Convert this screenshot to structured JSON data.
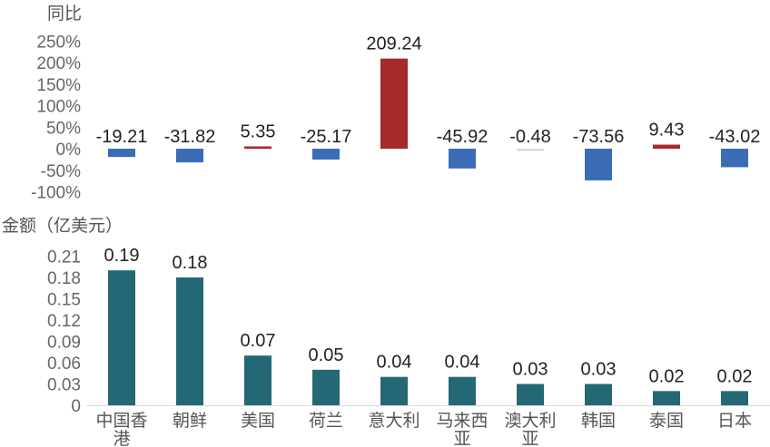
{
  "chart_data": [
    {
      "type": "bar",
      "title": "",
      "ylabel": "同比",
      "categories": [
        "中国香港",
        "朝鲜",
        "美国",
        "荷兰",
        "意大利",
        "马来西亚",
        "澳大利亚",
        "韩国",
        "泰国",
        "日本"
      ],
      "values": [
        -19.21,
        -31.82,
        5.35,
        -25.17,
        209.24,
        -45.92,
        -0.48,
        -73.56,
        9.43,
        -43.02
      ],
      "data_labels": [
        "-19.21",
        "-31.82",
        "5.35",
        "-25.17",
        "209.24",
        "-45.92",
        "-0.48",
        "-73.56",
        "9.43",
        "-43.02"
      ],
      "yticks": [
        "250%",
        "200%",
        "150%",
        "100%",
        "50%",
        "0%",
        "-50%",
        "-100%"
      ],
      "ylim": [
        -100,
        250
      ],
      "colors": {
        "positive": "#A52A2A",
        "negative": "#3A6DB5",
        "near_zero": "#D9D9D9"
      }
    },
    {
      "type": "bar",
      "title": "",
      "ylabel": "金额（亿美元）",
      "categories": [
        "中国香港",
        "朝鲜",
        "美国",
        "荷兰",
        "意大利",
        "马来西亚",
        "澳大利亚",
        "韩国",
        "泰国",
        "日本"
      ],
      "category_lines": [
        [
          "中国香",
          "港"
        ],
        [
          "朝鲜"
        ],
        [
          "美国"
        ],
        [
          "荷兰"
        ],
        [
          "意大利"
        ],
        [
          "马来西",
          "亚"
        ],
        [
          "澳大利",
          "亚"
        ],
        [
          "韩国"
        ],
        [
          "泰国"
        ],
        [
          "日本"
        ]
      ],
      "values": [
        0.19,
        0.18,
        0.07,
        0.05,
        0.04,
        0.04,
        0.03,
        0.03,
        0.02,
        0.02
      ],
      "data_labels": [
        "0.19",
        "0.18",
        "0.07",
        "0.05",
        "0.04",
        "0.04",
        "0.03",
        "0.03",
        "0.02",
        "0.02"
      ],
      "yticks": [
        "0.21",
        "0.18",
        "0.15",
        "0.12",
        "0.09",
        "0.06",
        "0.03",
        "0"
      ],
      "ylim": [
        0,
        0.21
      ],
      "colors": {
        "bar": "#246875"
      }
    }
  ]
}
